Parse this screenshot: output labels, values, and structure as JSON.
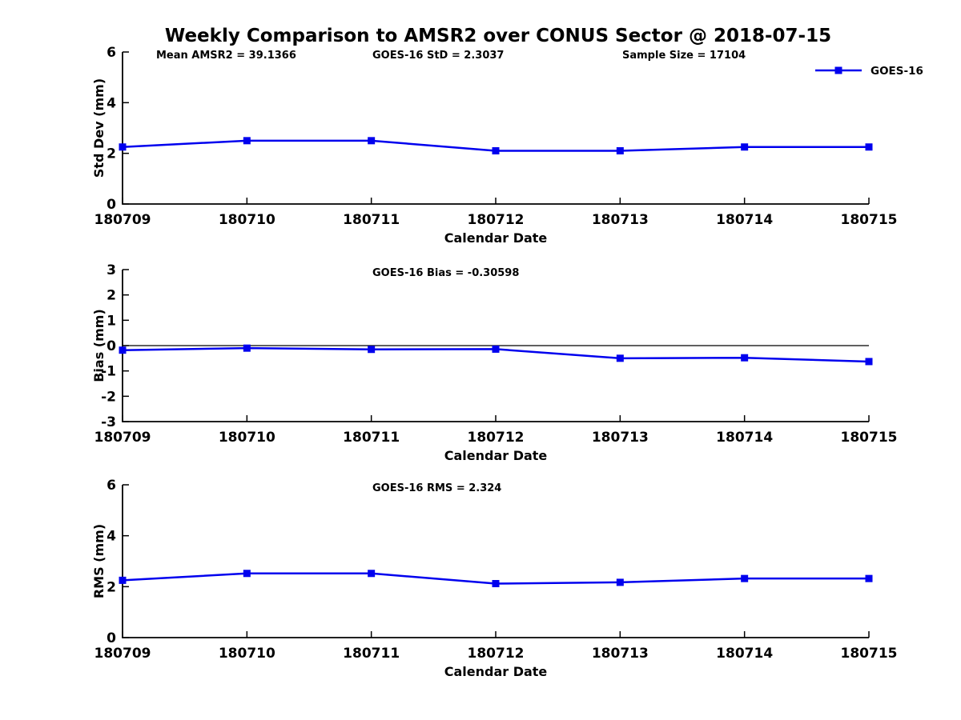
{
  "figure": {
    "title": "Weekly Comparison to AMSR2 over CONUS Sector @ 2018-07-15",
    "background_color": "#ffffff",
    "text_color": "#000000",
    "axis_color": "#000000"
  },
  "legend": {
    "label": "GOES-16",
    "line_color": "#0000ee",
    "marker": "square",
    "position": "top-right"
  },
  "chart_data": [
    {
      "type": "line",
      "title": "",
      "categories": [
        "180709",
        "180710",
        "180711",
        "180712",
        "180713",
        "180714",
        "180715"
      ],
      "series": [
        {
          "name": "GOES-16",
          "color": "#0000ee",
          "marker": "square",
          "values": [
            2.25,
            2.5,
            2.5,
            2.1,
            2.1,
            2.25,
            2.25
          ]
        }
      ],
      "xlabel": "Calendar Date",
      "ylabel": "Std Dev (mm)",
      "ylim": [
        0,
        6
      ],
      "yticks": [
        0,
        2,
        4,
        6
      ],
      "grid": false,
      "zero_line": false,
      "legend_position": "top-right",
      "annotations": [
        "Mean AMSR2 = 39.1366",
        "GOES-16 StD = 2.3037",
        "Sample Size = 17104"
      ]
    },
    {
      "type": "line",
      "title": "",
      "categories": [
        "180709",
        "180710",
        "180711",
        "180712",
        "180713",
        "180714",
        "180715"
      ],
      "series": [
        {
          "name": "GOES-16",
          "color": "#0000ee",
          "marker": "square",
          "values": [
            -0.18,
            -0.1,
            -0.15,
            -0.14,
            -0.5,
            -0.48,
            -0.63
          ]
        }
      ],
      "xlabel": "Calendar Date",
      "ylabel": "Bias (mm)",
      "ylim": [
        -3,
        3
      ],
      "yticks": [
        -3,
        -2,
        -1,
        0,
        1,
        2,
        3
      ],
      "grid": false,
      "zero_line": true,
      "annotations": [
        "GOES-16 Bias = -0.30598"
      ]
    },
    {
      "type": "line",
      "title": "",
      "categories": [
        "180709",
        "180710",
        "180711",
        "180712",
        "180713",
        "180714",
        "180715"
      ],
      "series": [
        {
          "name": "GOES-16",
          "color": "#0000ee",
          "marker": "square",
          "values": [
            2.25,
            2.52,
            2.52,
            2.12,
            2.17,
            2.32,
            2.32
          ]
        }
      ],
      "xlabel": "Calendar Date",
      "ylabel": "RMS (mm)",
      "ylim": [
        0,
        6
      ],
      "yticks": [
        0,
        2,
        4,
        6
      ],
      "grid": false,
      "zero_line": false,
      "annotations": [
        "GOES-16 RMS = 2.324"
      ]
    }
  ]
}
